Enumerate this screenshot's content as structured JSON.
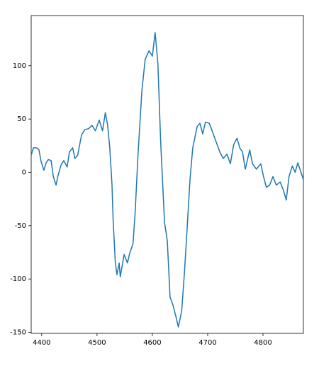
{
  "chart_data": {
    "type": "line",
    "x": [
      4381,
      4385,
      4391,
      4395,
      4399,
      4404,
      4408,
      4412,
      4417,
      4421,
      4426,
      4429,
      4435,
      4440,
      4446,
      4450,
      4456,
      4460,
      4465,
      4472,
      4478,
      4485,
      4491,
      4497,
      4504,
      4510,
      4515,
      4519,
      4523,
      4527,
      4529,
      4533,
      4536,
      4540,
      4542,
      4549,
      4555,
      4559,
      4565,
      4569,
      4574,
      4581,
      4587,
      4594,
      4600,
      4605,
      4610,
      4615,
      4622,
      4627,
      4632,
      4637,
      4642,
      4647,
      4653,
      4658,
      4663,
      4668,
      4673,
      4681,
      4686,
      4691,
      4696,
      4703,
      4708,
      4715,
      4722,
      4728,
      4735,
      4741,
      4747,
      4753,
      4758,
      4763,
      4768,
      4776,
      4781,
      4788,
      4796,
      4801,
      4806,
      4812,
      4818,
      4824,
      4831,
      4837,
      4842,
      4847,
      4853,
      4858,
      4863,
      4868,
      4873
    ],
    "series": [
      {
        "color": "#1f77b4",
        "values": [
          16,
          23,
          23,
          21,
          10,
          2,
          9,
          12,
          11,
          -4,
          -12,
          -4,
          7,
          11,
          5,
          19,
          23,
          13,
          16,
          35,
          40,
          41,
          44,
          39,
          49,
          39,
          56,
          45,
          23,
          -11,
          -43,
          -84,
          -96,
          -85,
          -98,
          -77,
          -85,
          -76,
          -67,
          -37,
          16,
          76,
          106,
          114,
          109,
          131,
          102,
          29,
          -47,
          -64,
          -117,
          -124,
          -134,
          -145,
          -130,
          -94,
          -51,
          -7,
          23,
          43,
          46,
          36,
          47,
          46,
          39,
          29,
          19,
          13,
          17,
          8,
          26,
          32,
          23,
          19,
          3,
          21,
          8,
          3,
          8,
          -4,
          -14,
          -12,
          -4,
          -12,
          -9,
          -17,
          -26,
          -4,
          6,
          0,
          9,
          1,
          -7
        ]
      }
    ],
    "xlim": [
      4381,
      4873
    ],
    "ylim": [
      -151,
      147
    ],
    "xticks": [
      4400,
      4500,
      4600,
      4700,
      4800
    ],
    "yticks": [
      -150,
      -100,
      -50,
      0,
      50,
      100
    ],
    "grid": false
  }
}
